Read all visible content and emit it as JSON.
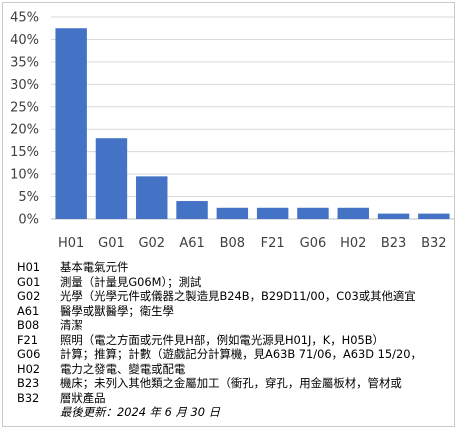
{
  "chart_data": {
    "type": "bar",
    "categories": [
      "H01",
      "G01",
      "G02",
      "A61",
      "B08",
      "F21",
      "G06",
      "H02",
      "B23",
      "B32"
    ],
    "values": [
      42.5,
      18,
      9.5,
      4,
      2.5,
      2.5,
      2.5,
      2.5,
      1.2,
      1.2
    ],
    "ylim": [
      0,
      45
    ],
    "yticks": [
      "0%",
      "5%",
      "10%",
      "15%",
      "20%",
      "25%",
      "30%",
      "35%",
      "40%",
      "45%"
    ],
    "grid": true,
    "bar_color": "#4472c4"
  },
  "legend": [
    {
      "code": "H01",
      "desc": "基本電氣元件"
    },
    {
      "code": "G01",
      "desc": "測量（計量見G06M）；測試"
    },
    {
      "code": "G02",
      "desc": "光學（光學元件或儀器之製造見B24B，B29D11/00，C03或其他適宜"
    },
    {
      "code": "A61",
      "desc": "醫學或獸醫學；衛生學"
    },
    {
      "code": "B08",
      "desc": "清潔"
    },
    {
      "code": "F21",
      "desc": "照明（電之方面或元件見H部，例如電光源見H01J，K，H05B）"
    },
    {
      "code": "G06",
      "desc": "計算；推算；計數（遊戲記分計算機，見A63B 71/06，A63D 15/20，"
    },
    {
      "code": "H02",
      "desc": "電力之發電、變電或配電"
    },
    {
      "code": "B23",
      "desc": "機床；未列入其他類之金屬加工（衝孔，穿孔，用金屬板材，管材或"
    },
    {
      "code": "B32",
      "desc": "層狀產品"
    }
  ],
  "updated": "最後更新：2024 年 6 月 30 日"
}
